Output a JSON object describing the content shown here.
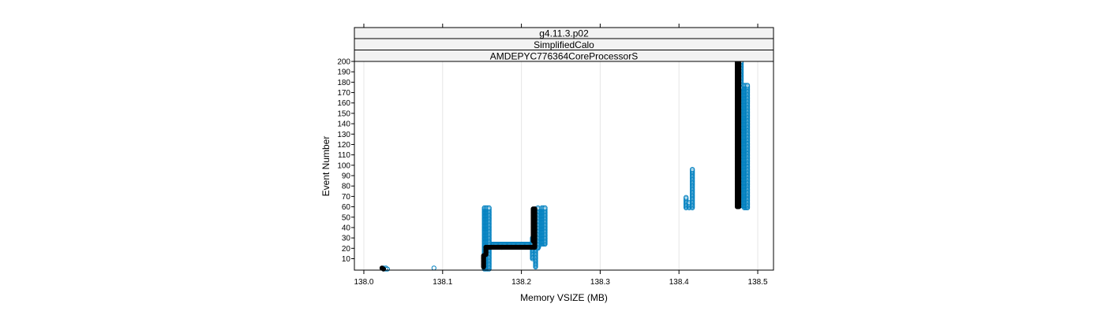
{
  "strips": [
    "g4.11.3.p02",
    "SimplifiedCalo",
    "AMDEPYC776364CoreProcessorS"
  ],
  "chart_data": {
    "type": "scatter",
    "xlabel": "Memory VSIZE (MB)",
    "ylabel": "Event Number",
    "xlim": [
      137.988,
      138.52
    ],
    "ylim": [
      -1,
      200
    ],
    "xticks": [
      138.0,
      138.1,
      138.2,
      138.3,
      138.4,
      138.5
    ],
    "xtick_labels": [
      "138.0",
      "138.1",
      "138.2",
      "138.3",
      "138.4",
      "138.5"
    ],
    "yticks": [
      10,
      20,
      30,
      40,
      50,
      60,
      70,
      80,
      90,
      100,
      110,
      120,
      130,
      140,
      150,
      160,
      170,
      180,
      190,
      200
    ],
    "ytick_labels": [
      "10",
      "20",
      "30",
      "40",
      "50",
      "60",
      "70",
      "80",
      "90",
      "100",
      "110",
      "120",
      "130",
      "140",
      "150",
      "160",
      "170",
      "180",
      "190",
      "200"
    ],
    "grid": "vertical",
    "colors": {
      "blue": "#0080c0",
      "black": "#000000",
      "grid": "#e6e6e6"
    },
    "series": [
      {
        "color": "blue",
        "vertical_runs": [
          {
            "x": 138.025,
            "y0": 0,
            "y1": 1
          },
          {
            "x": 138.028,
            "y0": 0,
            "y1": 1
          },
          {
            "x": 138.153,
            "y0": 0,
            "y1": 59
          },
          {
            "x": 138.155,
            "y0": 0,
            "y1": 59
          },
          {
            "x": 138.157,
            "y0": 0,
            "y1": 59
          },
          {
            "x": 138.159,
            "y0": 0,
            "y1": 59
          },
          {
            "x": 138.214,
            "y0": 10,
            "y1": 30
          },
          {
            "x": 138.218,
            "y0": 2,
            "y1": 58
          },
          {
            "x": 138.221,
            "y0": 20,
            "y1": 59
          },
          {
            "x": 138.226,
            "y0": 24,
            "y1": 59
          },
          {
            "x": 138.228,
            "y0": 24,
            "y1": 59
          },
          {
            "x": 138.23,
            "y0": 24,
            "y1": 59
          },
          {
            "x": 138.409,
            "y0": 59,
            "y1": 69
          },
          {
            "x": 138.413,
            "y0": 59,
            "y1": 64
          },
          {
            "x": 138.417,
            "y0": 59,
            "y1": 96
          },
          {
            "x": 138.479,
            "y0": 61,
            "y1": 200
          },
          {
            "x": 138.481,
            "y0": 61,
            "y1": 175
          },
          {
            "x": 138.483,
            "y0": 59,
            "y1": 177
          },
          {
            "x": 138.485,
            "y0": 59,
            "y1": 177
          },
          {
            "x": 138.487,
            "y0": 59,
            "y1": 177
          }
        ],
        "horizontal_runs": [
          {
            "y": 21,
            "x0": 138.158,
            "x1": 138.222
          },
          {
            "y": 22,
            "x0": 138.158,
            "x1": 138.222
          },
          {
            "y": 23,
            "x0": 138.158,
            "x1": 138.222
          },
          {
            "y": 24,
            "x0": 138.158,
            "x1": 138.222
          }
        ],
        "points": [
          {
            "x": 138.03,
            "y": 0
          },
          {
            "x": 138.089,
            "y": 1
          }
        ]
      },
      {
        "color": "black",
        "vertical_runs": [
          {
            "x": 138.152,
            "y0": 2,
            "y1": 13
          },
          {
            "x": 138.155,
            "y0": 14,
            "y1": 21
          },
          {
            "x": 138.215,
            "y0": 27,
            "y1": 58
          },
          {
            "x": 138.217,
            "y0": 21,
            "y1": 58
          },
          {
            "x": 138.474,
            "y0": 60,
            "y1": 200
          },
          {
            "x": 138.476,
            "y0": 60,
            "y1": 200
          }
        ],
        "horizontal_runs": [
          {
            "y": 21,
            "x0": 138.155,
            "x1": 138.217
          }
        ],
        "points": [
          {
            "x": 138.023,
            "y": 1
          },
          {
            "x": 138.025,
            "y": 0
          }
        ]
      }
    ]
  }
}
